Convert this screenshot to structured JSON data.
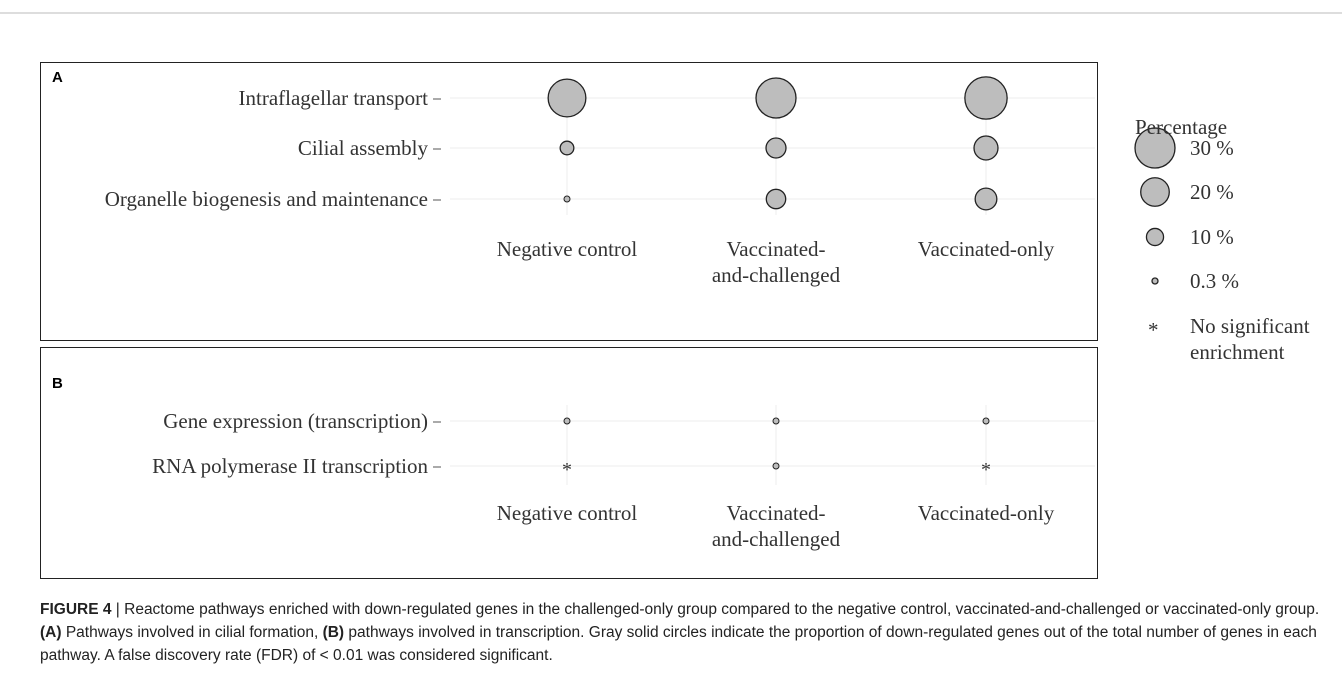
{
  "chart_data": [
    {
      "type": "bubble",
      "panel": "A",
      "categories": [
        "Negative control",
        "Vaccinated-\nand-challenged",
        "Vaccinated-only"
      ],
      "color": "#bdbdbd",
      "grid": true,
      "series": [
        {
          "name": "Intraflagellar transport",
          "values": [
            28,
            30,
            32
          ]
        },
        {
          "name": "Cilial assembly",
          "values": [
            7,
            12.5,
            16
          ]
        },
        {
          "name": "Organelle biogenesis and maintenance",
          "values": [
            0.3,
            12,
            14
          ]
        }
      ]
    },
    {
      "type": "bubble",
      "panel": "B",
      "categories": [
        "Negative control",
        "Vaccinated-\nand-challenged",
        "Vaccinated-only"
      ],
      "color": "#bdbdbd",
      "grid": true,
      "series": [
        {
          "name": "Gene expression (transcription)",
          "values": [
            0.3,
            0.3,
            0.3
          ]
        },
        {
          "name": "RNA polymerase II transcription",
          "values": [
            null,
            0.3,
            null
          ]
        }
      ]
    }
  ],
  "legend": {
    "title": "Percentage",
    "values": [
      30,
      20,
      10,
      0.3
    ],
    "value_labels": [
      "30 %",
      "20 %",
      "10 %",
      "0.3 %"
    ],
    "null_symbol": "*",
    "null_label": "No significant\nenrichment"
  },
  "caption": [
    "FIGURE 4",
    " | Reactome pathways enriched with down-regulated genes in the challenged-only group compared to the negative control, vaccinated-and-challenged or vaccinated-only group. ",
    "(A)",
    " Pathways involved in cilial formation, ",
    "(B)",
    " pathways involved in transcription. Gray solid circles indicate the proportion of down-regulated genes out of the total number of genes in each pathway. A false discovery rate (FDR) of < 0.01 was considered significant."
  ]
}
